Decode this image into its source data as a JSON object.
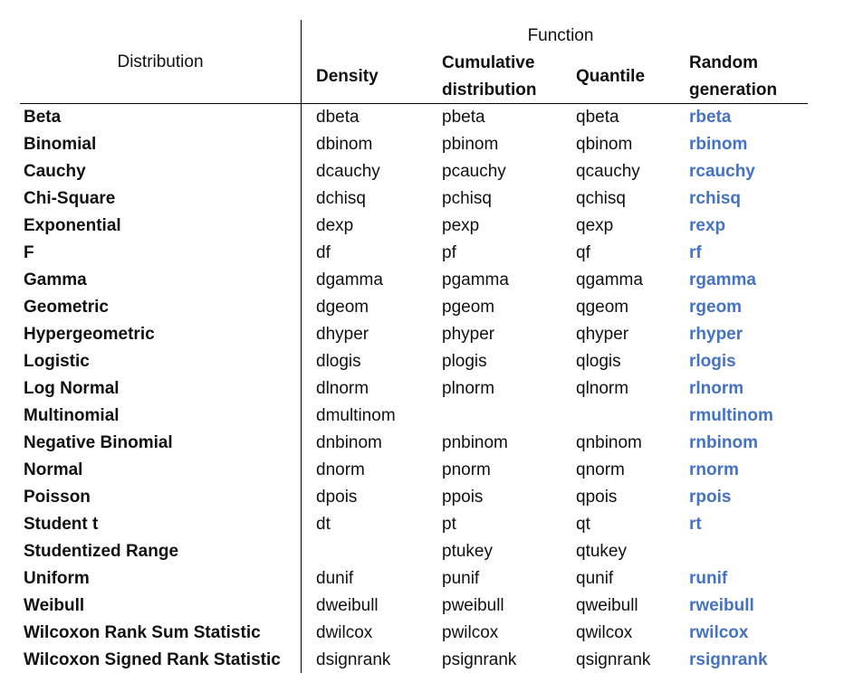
{
  "header": {
    "distribution": "Distribution",
    "function": "Function",
    "density": "Density",
    "cumulative": "Cumulative distribution",
    "quantile": "Quantile",
    "random": "Random generation"
  },
  "colors": {
    "random_text": "#4472c4"
  },
  "rows": [
    {
      "name": "Beta",
      "d": "dbeta",
      "p": "pbeta",
      "q": "qbeta",
      "r": "rbeta"
    },
    {
      "name": "Binomial",
      "d": "dbinom",
      "p": "pbinom",
      "q": "qbinom",
      "r": "rbinom"
    },
    {
      "name": "Cauchy",
      "d": "dcauchy",
      "p": "pcauchy",
      "q": "qcauchy",
      "r": "rcauchy"
    },
    {
      "name": "Chi-Square",
      "d": "dchisq",
      "p": "pchisq",
      "q": "qchisq",
      "r": "rchisq"
    },
    {
      "name": "Exponential",
      "d": "dexp",
      "p": "pexp",
      "q": "qexp",
      "r": "rexp"
    },
    {
      "name": "F",
      "d": "df",
      "p": "pf",
      "q": "qf",
      "r": "rf"
    },
    {
      "name": "Gamma",
      "d": "dgamma",
      "p": "pgamma",
      "q": "qgamma",
      "r": "rgamma"
    },
    {
      "name": "Geometric",
      "d": "dgeom",
      "p": "pgeom",
      "q": "qgeom",
      "r": "rgeom"
    },
    {
      "name": "Hypergeometric",
      "d": "dhyper",
      "p": "phyper",
      "q": "qhyper",
      "r": "rhyper"
    },
    {
      "name": "Logistic",
      "d": "dlogis",
      "p": "plogis",
      "q": "qlogis",
      "r": "rlogis"
    },
    {
      "name": "Log Normal",
      "d": "dlnorm",
      "p": "plnorm",
      "q": "qlnorm",
      "r": "rlnorm"
    },
    {
      "name": "Multinomial",
      "d": "dmultinom",
      "p": "",
      "q": "",
      "r": "rmultinom"
    },
    {
      "name": "Negative Binomial",
      "d": "dnbinom",
      "p": "pnbinom",
      "q": "qnbinom",
      "r": "rnbinom"
    },
    {
      "name": "Normal",
      "d": "dnorm",
      "p": "pnorm",
      "q": "qnorm",
      "r": "rnorm"
    },
    {
      "name": "Poisson",
      "d": "dpois",
      "p": "ppois",
      "q": "qpois",
      "r": "rpois"
    },
    {
      "name": "Student t",
      "d": "dt",
      "p": "pt",
      "q": "qt",
      "r": "rt"
    },
    {
      "name": "Studentized Range",
      "d": "",
      "p": "ptukey",
      "q": "qtukey",
      "r": ""
    },
    {
      "name": "Uniform",
      "d": "dunif",
      "p": "punif",
      "q": "qunif",
      "r": "runif"
    },
    {
      "name": "Weibull",
      "d": "dweibull",
      "p": "pweibull",
      "q": "qweibull",
      "r": "rweibull"
    },
    {
      "name": "Wilcoxon Rank Sum Statistic",
      "d": "dwilcox",
      "p": "pwilcox",
      "q": "qwilcox",
      "r": "rwilcox"
    },
    {
      "name": "Wilcoxon Signed Rank Statistic",
      "d": "dsignrank",
      "p": "psignrank",
      "q": "qsignrank",
      "r": "rsignrank"
    }
  ]
}
